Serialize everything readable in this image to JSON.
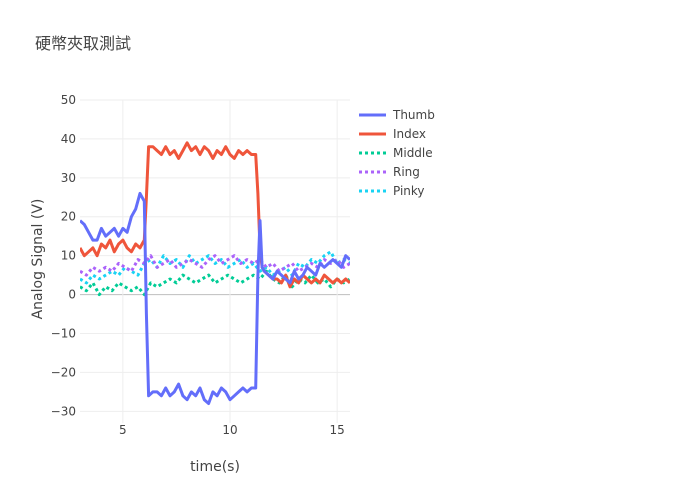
{
  "chart_data": {
    "type": "line",
    "title": "硬幣夾取測試",
    "xlabel": "time(s)",
    "ylabel": "Analog Signal (V)",
    "xlim": [
      3,
      15.6
    ],
    "ylim": [
      -33,
      50
    ],
    "xticks": [
      5,
      10,
      15
    ],
    "yticks": [
      -30,
      -20,
      -10,
      0,
      10,
      20,
      30,
      40,
      50
    ],
    "grid": true,
    "legend_position": "top-right",
    "series": [
      {
        "name": "Thumb",
        "color": "#636efa",
        "dash": "solid",
        "x": [
          3.0,
          3.2,
          3.4,
          3.6,
          3.8,
          4.0,
          4.2,
          4.4,
          4.6,
          4.8,
          5.0,
          5.2,
          5.4,
          5.6,
          5.8,
          5.9,
          6.0,
          6.1,
          6.2,
          6.4,
          6.6,
          6.8,
          7.0,
          7.2,
          7.4,
          7.6,
          7.8,
          8.0,
          8.2,
          8.4,
          8.6,
          8.8,
          9.0,
          9.2,
          9.4,
          9.6,
          9.8,
          10.0,
          10.2,
          10.4,
          10.6,
          10.8,
          11.0,
          11.2,
          11.3,
          11.4,
          11.5,
          11.6,
          11.8,
          12.0,
          12.2,
          12.4,
          12.6,
          12.8,
          13.0,
          13.2,
          13.4,
          13.6,
          13.8,
          14.0,
          14.2,
          14.4,
          14.6,
          14.8,
          15.0,
          15.2,
          15.4,
          15.6
        ],
        "y": [
          19,
          18,
          16,
          14,
          14,
          17,
          15,
          16,
          17,
          15,
          17,
          16,
          20,
          22,
          26,
          25,
          24,
          -5,
          -26,
          -25,
          -25,
          -26,
          -24,
          -26,
          -25,
          -23,
          -26,
          -27,
          -25,
          -26,
          -24,
          -27,
          -28,
          -25,
          -26,
          -24,
          -25,
          -27,
          -26,
          -25,
          -24,
          -25,
          -24,
          -24,
          5,
          19,
          7,
          6,
          5,
          4,
          6,
          5,
          4,
          3,
          6,
          4,
          5,
          7,
          6,
          5,
          8,
          7,
          8,
          9,
          8,
          7,
          10,
          9
        ]
      },
      {
        "name": "Index",
        "color": "#ef553b",
        "dash": "solid",
        "x": [
          3.0,
          3.2,
          3.4,
          3.6,
          3.8,
          4.0,
          4.2,
          4.4,
          4.6,
          4.8,
          5.0,
          5.2,
          5.4,
          5.6,
          5.8,
          5.9,
          6.0,
          6.1,
          6.2,
          6.4,
          6.6,
          6.8,
          7.0,
          7.2,
          7.4,
          7.6,
          7.8,
          8.0,
          8.2,
          8.4,
          8.6,
          8.8,
          9.0,
          9.2,
          9.4,
          9.6,
          9.8,
          10.0,
          10.2,
          10.4,
          10.6,
          10.8,
          11.0,
          11.2,
          11.3,
          11.4,
          11.5,
          11.6,
          11.8,
          12.0,
          12.2,
          12.4,
          12.6,
          12.8,
          13.0,
          13.2,
          13.4,
          13.6,
          13.8,
          14.0,
          14.2,
          14.4,
          14.6,
          14.8,
          15.0,
          15.2,
          15.4,
          15.6
        ],
        "y": [
          12,
          10,
          11,
          12,
          10,
          13,
          12,
          14,
          11,
          13,
          14,
          12,
          11,
          13,
          12,
          13,
          14,
          25,
          38,
          38,
          37,
          36,
          38,
          36,
          37,
          35,
          37,
          39,
          37,
          38,
          36,
          38,
          37,
          35,
          37,
          36,
          38,
          36,
          35,
          37,
          36,
          37,
          36,
          36,
          26,
          12,
          7,
          6,
          5,
          4,
          4,
          3,
          5,
          2,
          4,
          3,
          5,
          4,
          3,
          4,
          3,
          5,
          4,
          3,
          4,
          3,
          4,
          3
        ]
      },
      {
        "name": "Middle",
        "color": "#00cc96",
        "dash": "dot",
        "x": [
          3.0,
          3.3,
          3.6,
          3.9,
          4.2,
          4.5,
          4.8,
          5.1,
          5.4,
          5.7,
          6.0,
          6.3,
          6.6,
          6.9,
          7.2,
          7.5,
          7.8,
          8.1,
          8.4,
          8.7,
          9.0,
          9.3,
          9.6,
          9.9,
          10.2,
          10.5,
          10.8,
          11.1,
          11.4,
          11.7,
          12.0,
          12.3,
          12.6,
          12.9,
          13.2,
          13.5,
          13.8,
          14.1,
          14.4,
          14.7,
          15.0,
          15.3,
          15.6
        ],
        "y": [
          2,
          1,
          3,
          0,
          2,
          1,
          3,
          2,
          1,
          2,
          0,
          3,
          2,
          3,
          4,
          3,
          5,
          4,
          3,
          4,
          5,
          3,
          4,
          5,
          4,
          3,
          4,
          5,
          4,
          6,
          4,
          3,
          5,
          2,
          4,
          3,
          5,
          3,
          4,
          2,
          4,
          3,
          4
        ]
      },
      {
        "name": "Ring",
        "color": "#ab63fa",
        "dash": "dot",
        "x": [
          3.0,
          3.3,
          3.6,
          3.9,
          4.2,
          4.5,
          4.8,
          5.1,
          5.4,
          5.7,
          6.0,
          6.3,
          6.6,
          6.9,
          7.2,
          7.5,
          7.8,
          8.1,
          8.4,
          8.7,
          9.0,
          9.3,
          9.6,
          9.9,
          10.2,
          10.5,
          10.8,
          11.1,
          11.4,
          11.7,
          12.0,
          12.3,
          12.6,
          12.9,
          13.2,
          13.5,
          13.8,
          14.1,
          14.4,
          14.7,
          15.0,
          15.3,
          15.6
        ],
        "y": [
          6,
          5,
          7,
          6,
          7,
          6,
          8,
          7,
          6,
          9,
          8,
          10,
          7,
          8,
          9,
          7,
          8,
          9,
          8,
          7,
          9,
          10,
          8,
          9,
          10,
          8,
          9,
          8,
          9,
          7,
          8,
          6,
          7,
          8,
          6,
          7,
          8,
          7,
          9,
          8,
          9,
          7,
          8
        ]
      },
      {
        "name": "Pinky",
        "color": "#19d3f3",
        "dash": "dot",
        "x": [
          3.0,
          3.3,
          3.6,
          3.9,
          4.2,
          4.5,
          4.8,
          5.1,
          5.4,
          5.7,
          6.0,
          6.3,
          6.6,
          6.9,
          7.2,
          7.5,
          7.8,
          8.1,
          8.4,
          8.7,
          9.0,
          9.3,
          9.6,
          9.9,
          10.2,
          10.5,
          10.8,
          11.1,
          11.4,
          11.7,
          12.0,
          12.3,
          12.6,
          12.9,
          13.2,
          13.5,
          13.8,
          14.1,
          14.4,
          14.7,
          15.0,
          15.3,
          15.6
        ],
        "y": [
          4,
          3,
          5,
          4,
          5,
          6,
          5,
          7,
          6,
          5,
          8,
          9,
          7,
          10,
          8,
          9,
          7,
          10,
          8,
          9,
          10,
          8,
          9,
          7,
          8,
          9,
          7,
          8,
          6,
          7,
          5,
          6,
          7,
          5,
          8,
          7,
          9,
          8,
          10,
          11,
          8,
          9,
          8
        ]
      }
    ]
  }
}
